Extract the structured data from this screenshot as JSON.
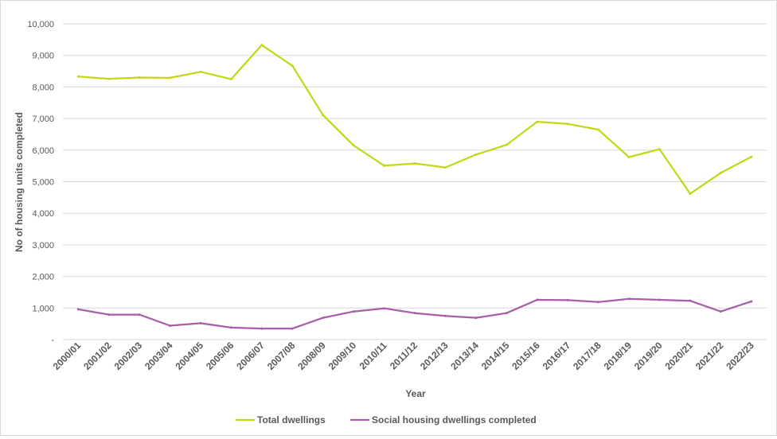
{
  "chart_data": {
    "type": "line",
    "title": "",
    "xlabel": "Year",
    "ylabel": "No of housing units completed",
    "ylim": [
      0,
      10000
    ],
    "yticks": [
      0,
      1000,
      2000,
      3000,
      4000,
      5000,
      6000,
      7000,
      8000,
      9000,
      10000
    ],
    "ytick_labels": [
      "-",
      "1,000",
      "2,000",
      "3,000",
      "4,000",
      "5,000",
      "6,000",
      "7,000",
      "8,000",
      "9,000",
      "10,000"
    ],
    "grid": "horizontal",
    "legend_position": "bottom",
    "categories": [
      "2000/01",
      "2001/02",
      "2002/03",
      "2003/04",
      "2004/05",
      "2005/06",
      "2006/07",
      "2007/08",
      "2008/09",
      "2009/10",
      "2010/11",
      "2011/12",
      "2012/13",
      "2013/14",
      "2014/15",
      "2015/16",
      "2016/17",
      "2017/18",
      "2018/19",
      "2019/20",
      "2020/21",
      "2021/22",
      "2022/23"
    ],
    "series": [
      {
        "name": "Total dwellings",
        "color": "#c2d817",
        "values": [
          8330,
          8260,
          8300,
          8290,
          8480,
          8250,
          9330,
          8670,
          7110,
          6150,
          5510,
          5580,
          5450,
          5860,
          6170,
          6900,
          6830,
          6650,
          5780,
          6030,
          4620,
          5280,
          5790
        ]
      },
      {
        "name": "Social housing dwellings completed",
        "color": "#a65fa8",
        "values": [
          960,
          790,
          790,
          440,
          520,
          380,
          350,
          350,
          690,
          890,
          990,
          840,
          750,
          690,
          840,
          1260,
          1250,
          1190,
          1290,
          1260,
          1230,
          890,
          1210
        ]
      }
    ]
  }
}
